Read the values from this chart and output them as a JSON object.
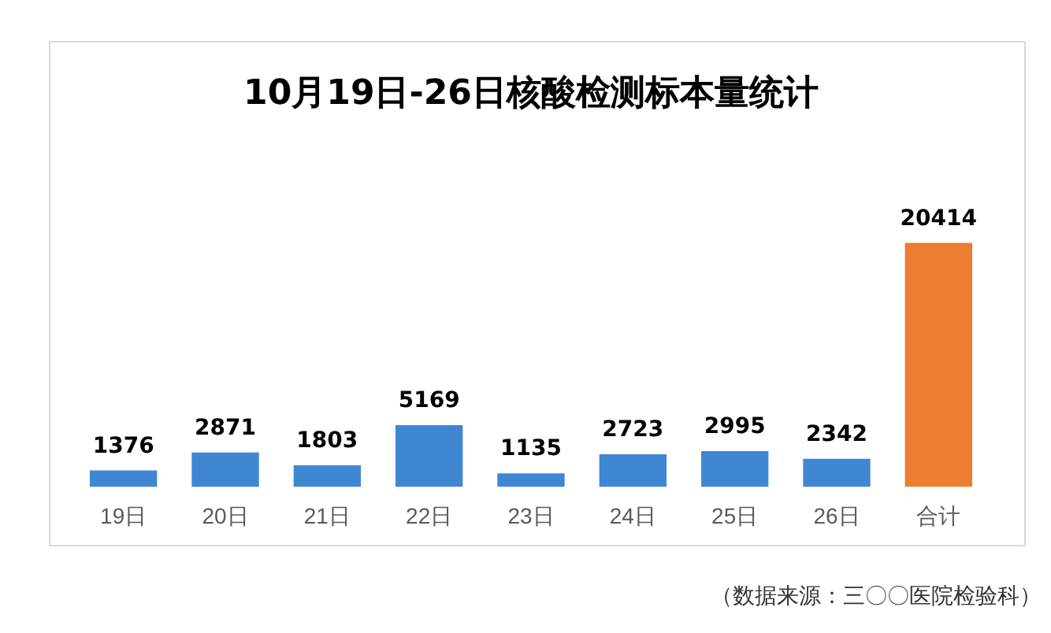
{
  "chart_data": {
    "type": "bar",
    "title": "10月19日-26日核酸检测标本量统计",
    "categories": [
      "19日",
      "20日",
      "21日",
      "22日",
      "23日",
      "24日",
      "25日",
      "26日",
      "合计"
    ],
    "values": [
      1376,
      2871,
      1803,
      5169,
      1135,
      2723,
      2995,
      2342,
      20414
    ],
    "colors": [
      "#3f87d3",
      "#3f87d3",
      "#3f87d3",
      "#3f87d3",
      "#3f87d3",
      "#3f87d3",
      "#3f87d3",
      "#3f87d3",
      "#ed7d31"
    ],
    "data_labels": true,
    "annotations": [
      "（数据来源：三〇〇医院检验科）"
    ]
  }
}
